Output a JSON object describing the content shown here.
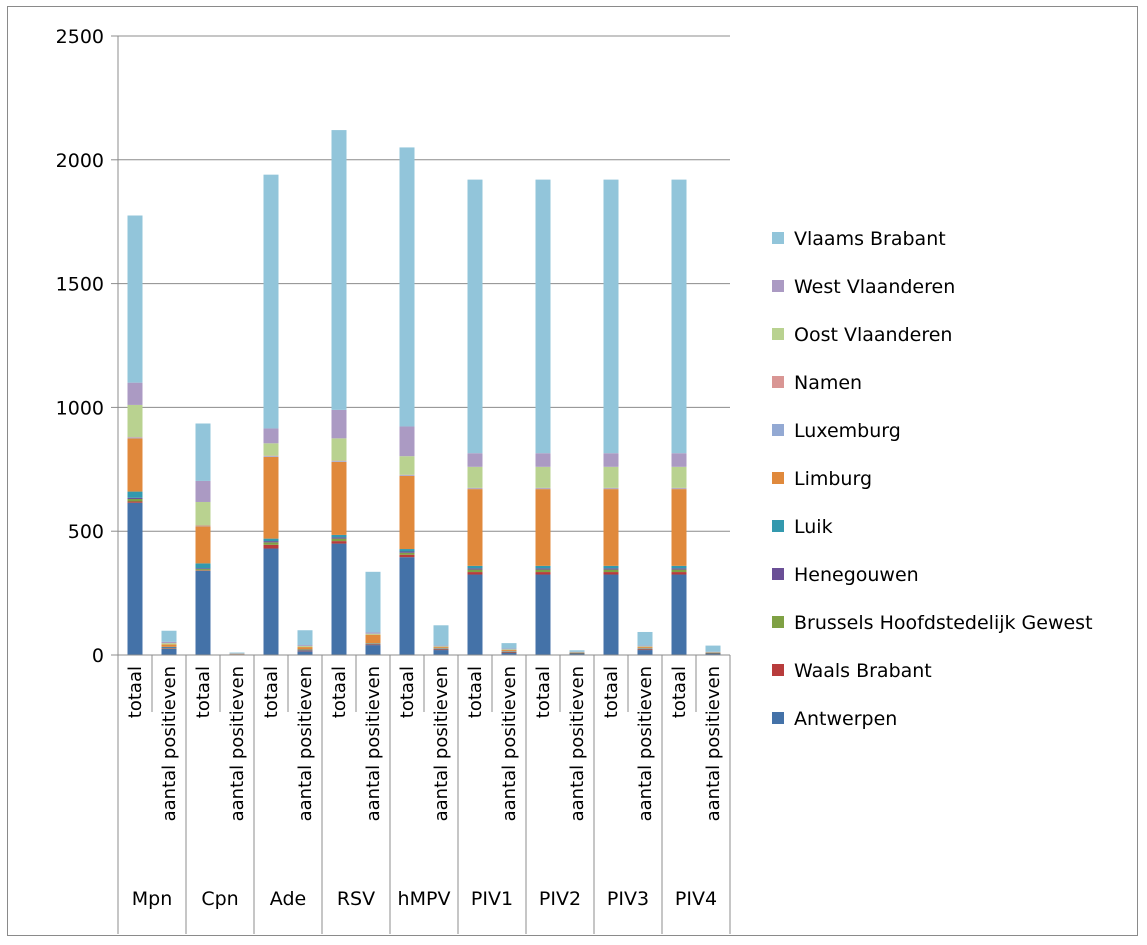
{
  "chart_data": {
    "type": "bar",
    "stacked": true,
    "groups": [
      "Mpn",
      "Cpn",
      "Ade",
      "RSV",
      "hMPV",
      "PIV1",
      "PIV2",
      "PIV3",
      "PIV4"
    ],
    "subcategories": [
      "totaal",
      "aantal positieven"
    ],
    "ylim": [
      0,
      2500
    ],
    "yticks": [
      0,
      500,
      1000,
      1500,
      2000,
      2500
    ],
    "grid": true,
    "legend_position": "right",
    "series": [
      {
        "name": "Antwerpen",
        "color": "#4472A8",
        "values": [
          615,
          25,
          340,
          3,
          430,
          15,
          450,
          40,
          395,
          20,
          325,
          8,
          325,
          5,
          325,
          20,
          325,
          5
        ]
      },
      {
        "name": "Waals Brabant",
        "color": "#B83C3C",
        "values": [
          5,
          2,
          2,
          0,
          15,
          2,
          10,
          2,
          10,
          2,
          10,
          2,
          10,
          1,
          10,
          2,
          10,
          1
        ]
      },
      {
        "name": "Brussels Hoofdstedelijk Gewest",
        "color": "#7FA144",
        "values": [
          10,
          2,
          5,
          0,
          10,
          2,
          10,
          2,
          8,
          2,
          10,
          2,
          10,
          1,
          10,
          2,
          10,
          1
        ]
      },
      {
        "name": "Henegouwen",
        "color": "#6A4F96",
        "values": [
          5,
          1,
          3,
          0,
          5,
          1,
          5,
          1,
          5,
          1,
          5,
          1,
          5,
          1,
          5,
          1,
          5,
          1
        ]
      },
      {
        "name": "Luik",
        "color": "#3399AE",
        "values": [
          25,
          3,
          20,
          0,
          10,
          2,
          10,
          2,
          10,
          2,
          10,
          2,
          10,
          1,
          10,
          2,
          10,
          1
        ]
      },
      {
        "name": "Limburg",
        "color": "#E0893C",
        "values": [
          215,
          10,
          150,
          2,
          330,
          10,
          295,
          35,
          295,
          5,
          310,
          5,
          310,
          2,
          310,
          5,
          310,
          2
        ]
      },
      {
        "name": "Luxemburg",
        "color": "#93A9D3",
        "values": [
          3,
          0,
          2,
          0,
          3,
          0,
          3,
          0,
          3,
          0,
          3,
          0,
          3,
          0,
          3,
          0,
          3,
          0
        ]
      },
      {
        "name": "Namen",
        "color": "#D99694",
        "values": [
          2,
          0,
          1,
          0,
          2,
          0,
          2,
          0,
          2,
          0,
          2,
          0,
          2,
          0,
          2,
          0,
          2,
          0
        ]
      },
      {
        "name": "Oost Vlaanderen",
        "color": "#B9D290",
        "values": [
          130,
          5,
          95,
          1,
          50,
          4,
          90,
          4,
          75,
          3,
          85,
          3,
          85,
          1,
          85,
          3,
          85,
          1
        ]
      },
      {
        "name": "West Vlaanderen",
        "color": "#AB9AC3",
        "values": [
          90,
          5,
          85,
          1,
          60,
          4,
          115,
          5,
          120,
          3,
          55,
          3,
          55,
          1,
          55,
          3,
          55,
          1
        ]
      },
      {
        "name": "Vlaams Brabant",
        "color": "#92C5DA",
        "values": [
          675,
          45,
          232,
          3,
          1025,
          60,
          1130,
          245,
          1127,
          82,
          1105,
          22,
          1105,
          6,
          1105,
          55,
          1105,
          25
        ]
      }
    ]
  }
}
